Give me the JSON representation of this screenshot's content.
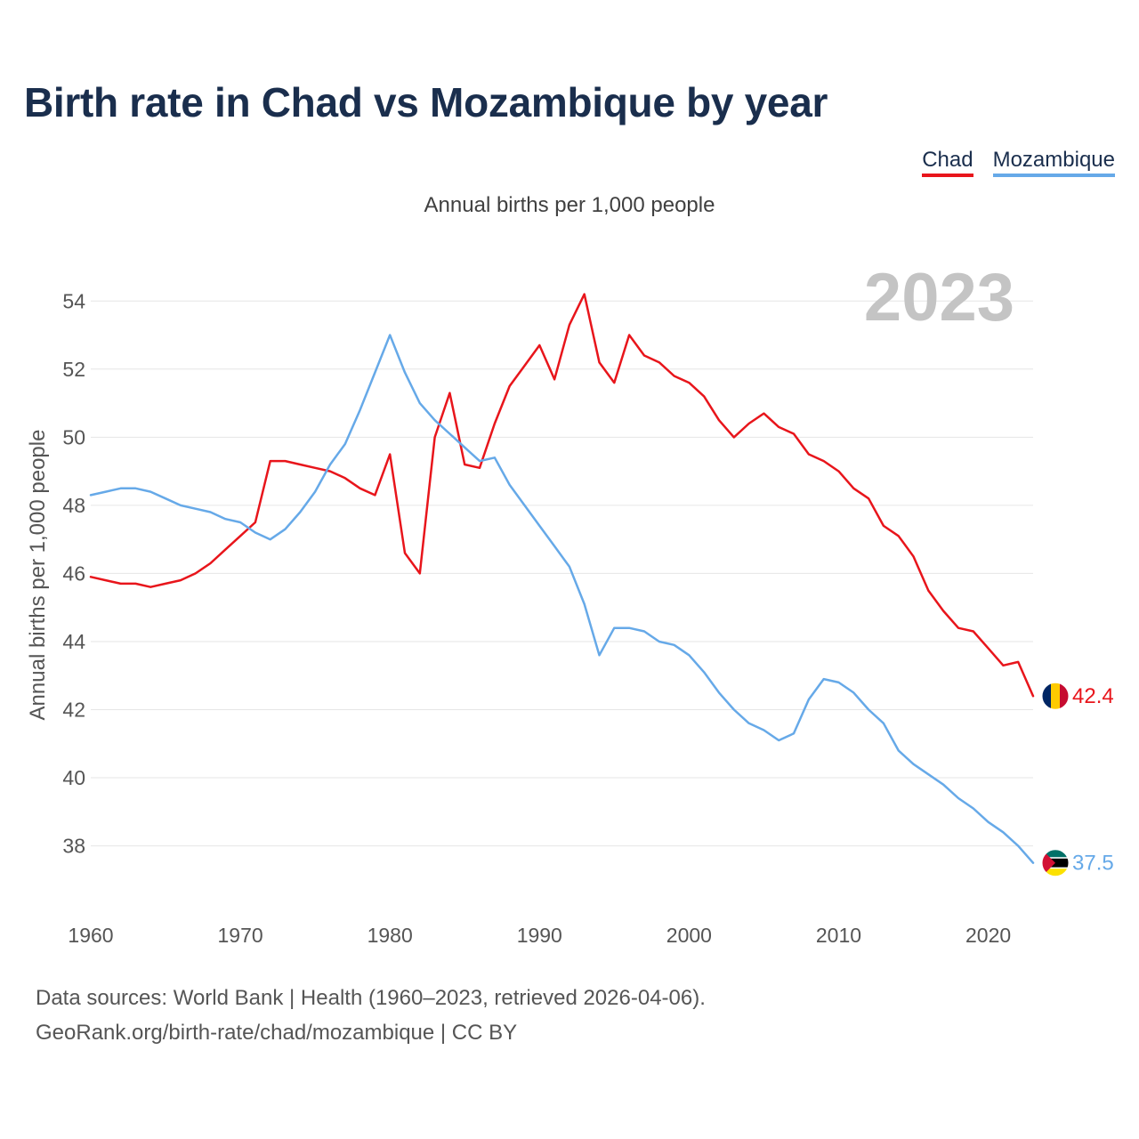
{
  "title": "Birth rate in Chad vs Mozambique by year",
  "subtitle": "Annual births per 1,000 people",
  "year_badge": "2023",
  "legend": [
    {
      "label": "Chad",
      "color": "#e8151b"
    },
    {
      "label": "Mozambique",
      "color": "#66a9e8"
    }
  ],
  "footer": {
    "source": "Data sources: World Bank | Health (1960–2023, retrieved 2026-04-06).",
    "link": "GeoRank.org/birth-rate/chad/mozambique | CC BY"
  },
  "chart_data": {
    "type": "line",
    "title": "Birth rate in Chad vs Mozambique by year",
    "xlabel": "",
    "ylabel": "Annual births per 1,000 people",
    "xlim": [
      1960,
      2023
    ],
    "ylim": [
      36.5,
      55
    ],
    "x_ticks": [
      1960,
      1970,
      1980,
      1990,
      2000,
      2010,
      2020
    ],
    "y_ticks": [
      38,
      40,
      42,
      44,
      46,
      48,
      50,
      52,
      54
    ],
    "grid": true,
    "legend_position": "top-right",
    "x": [
      1960,
      1961,
      1962,
      1963,
      1964,
      1965,
      1966,
      1967,
      1968,
      1969,
      1970,
      1971,
      1972,
      1973,
      1974,
      1975,
      1976,
      1977,
      1978,
      1979,
      1980,
      1981,
      1982,
      1983,
      1984,
      1985,
      1986,
      1987,
      1988,
      1989,
      1990,
      1991,
      1992,
      1993,
      1994,
      1995,
      1996,
      1997,
      1998,
      1999,
      2000,
      2001,
      2002,
      2003,
      2004,
      2005,
      2006,
      2007,
      2008,
      2009,
      2010,
      2011,
      2012,
      2013,
      2014,
      2015,
      2016,
      2017,
      2018,
      2019,
      2020,
      2021,
      2022,
      2023
    ],
    "series": [
      {
        "name": "Chad",
        "color": "#e8151b",
        "end_label": "42.4",
        "values": [
          45.9,
          45.8,
          45.7,
          45.7,
          45.6,
          45.7,
          45.8,
          46.0,
          46.3,
          46.7,
          47.1,
          47.5,
          49.3,
          49.3,
          49.2,
          49.1,
          49.0,
          48.8,
          48.5,
          48.3,
          49.5,
          46.6,
          46.0,
          50.0,
          51.3,
          49.2,
          49.1,
          50.4,
          51.5,
          52.1,
          52.7,
          51.7,
          53.3,
          54.2,
          52.2,
          51.6,
          53.0,
          52.4,
          52.2,
          51.8,
          51.6,
          51.2,
          50.5,
          50.0,
          50.4,
          50.7,
          50.3,
          50.1,
          49.5,
          49.3,
          49.0,
          48.5,
          48.2,
          47.4,
          47.1,
          46.5,
          45.5,
          44.9,
          44.4,
          44.3,
          43.8,
          43.3,
          43.4,
          42.4
        ]
      },
      {
        "name": "Mozambique",
        "color": "#66a9e8",
        "end_label": "37.5",
        "values": [
          48.3,
          48.4,
          48.5,
          48.5,
          48.4,
          48.2,
          48.0,
          47.9,
          47.8,
          47.6,
          47.5,
          47.2,
          47.0,
          47.3,
          47.8,
          48.4,
          49.2,
          49.8,
          50.8,
          51.9,
          53.0,
          51.9,
          51.0,
          50.5,
          50.1,
          49.7,
          49.3,
          49.4,
          48.6,
          48.0,
          47.4,
          46.8,
          46.2,
          45.1,
          43.6,
          44.4,
          44.4,
          44.3,
          44.0,
          43.9,
          43.6,
          43.1,
          42.5,
          42.0,
          41.6,
          41.4,
          41.1,
          41.3,
          42.3,
          42.9,
          42.8,
          42.5,
          42.0,
          41.6,
          40.8,
          40.4,
          40.1,
          39.8,
          39.4,
          39.1,
          38.7,
          38.4,
          38.0,
          37.5
        ]
      }
    ]
  }
}
